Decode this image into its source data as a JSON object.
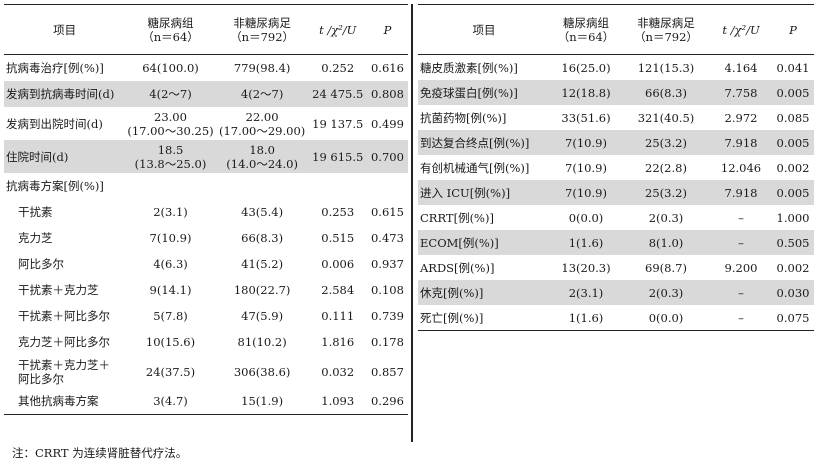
{
  "headers": {
    "item": "项目",
    "dm_group": "糖尿病组",
    "dm_n": "（n＝64）",
    "non_dm_group": "非糖尿病足",
    "non_dm_n": "（n＝792）",
    "stat": "t /χ²/U",
    "p": "P"
  },
  "left_rows": [
    {
      "label": "抗病毒治疗[例(%)]",
      "dm": "64(100.0)",
      "non": "779(98.4)",
      "stat": "0.252",
      "p": "0.616",
      "shade": false,
      "indent": false,
      "type": "single"
    },
    {
      "label": "发病到抗病毒时间(d)",
      "dm": "4(2～7)",
      "non": "4(2～7)",
      "stat": "24 475.5",
      "p": "0.808",
      "shade": true,
      "indent": false,
      "type": "single"
    },
    {
      "label": "发病到出院时间(d)",
      "dm": "23.00",
      "dm2": "(17.00～30.25)",
      "non": "22.00",
      "non2": "(17.00～29.00)",
      "stat": "19 137.5",
      "p": "0.499",
      "shade": false,
      "indent": false,
      "type": "double"
    },
    {
      "label": "住院时间(d)",
      "dm": "18.5",
      "dm2": "(13.8～25.0)",
      "non": "18.0",
      "non2": "(14.0～24.0)",
      "stat": "19 615.5",
      "p": "0.700",
      "shade": true,
      "indent": false,
      "type": "double"
    },
    {
      "label": "抗病毒方案[例(%)]",
      "dm": "",
      "non": "",
      "stat": "",
      "p": "",
      "shade": false,
      "indent": false,
      "type": "single"
    },
    {
      "label": "干扰素",
      "dm": "2(3.1)",
      "non": "43(5.4)",
      "stat": "0.253",
      "p": "0.615",
      "shade": false,
      "indent": true,
      "type": "single"
    },
    {
      "label": "克力芝",
      "dm": "7(10.9)",
      "non": "66(8.3)",
      "stat": "0.515",
      "p": "0.473",
      "shade": false,
      "indent": true,
      "type": "single"
    },
    {
      "label": "阿比多尔",
      "dm": "4(6.3)",
      "non": "41(5.2)",
      "stat": "0.006",
      "p": "0.937",
      "shade": false,
      "indent": true,
      "type": "single"
    },
    {
      "label": "干扰素＋克力芝",
      "dm": "9(14.1)",
      "non": "180(22.7)",
      "stat": "2.584",
      "p": "0.108",
      "shade": false,
      "indent": true,
      "type": "single"
    },
    {
      "label": "干扰素＋阿比多尔",
      "dm": "5(7.8)",
      "non": "47(5.9)",
      "stat": "0.111",
      "p": "0.739",
      "shade": false,
      "indent": true,
      "type": "single"
    },
    {
      "label": "克力芝＋阿比多尔",
      "dm": "10(15.6)",
      "non": "81(10.2)",
      "stat": "1.816",
      "p": "0.178",
      "shade": false,
      "indent": true,
      "type": "single"
    },
    {
      "label": "干扰素＋克力芝＋",
      "label2": "阿比多尔",
      "dm": "24(37.5)",
      "non": "306(38.6)",
      "stat": "0.032",
      "p": "0.857",
      "shade": false,
      "indent": true,
      "type": "double"
    },
    {
      "label": "其他抗病毒方案",
      "dm": "3(4.7)",
      "non": "15(1.9)",
      "stat": "1.093",
      "p": "0.296",
      "shade": false,
      "indent": true,
      "type": "single"
    }
  ],
  "right_rows": [
    {
      "label": "糖皮质激素[例(%)]",
      "dm": "16(25.0)",
      "non": "121(15.3)",
      "stat": "4.164",
      "p": "0.041",
      "shade": false
    },
    {
      "label": "免疫球蛋白[例(%)]",
      "dm": "12(18.8)",
      "non": "66(8.3)",
      "stat": "7.758",
      "p": "0.005",
      "shade": true
    },
    {
      "label": "抗菌药物[例(%)]",
      "dm": "33(51.6)",
      "non": "321(40.5)",
      "stat": "2.972",
      "p": "0.085",
      "shade": false
    },
    {
      "label": "到达复合终点[例(%)]",
      "dm": "7(10.9)",
      "non": "25(3.2)",
      "stat": "7.918",
      "p": "0.005",
      "shade": true
    },
    {
      "label": "有创机械通气[例(%)]",
      "dm": "7(10.9)",
      "non": "22(2.8)",
      "stat": "12.046",
      "p": "0.002",
      "shade": false
    },
    {
      "label": "进入 ICU[例(%)]",
      "dm": "7(10.9)",
      "non": "25(3.2)",
      "stat": "7.918",
      "p": "0.005",
      "shade": true
    },
    {
      "label": "CRRT[例(%)]",
      "dm": "0(0.0)",
      "non": "2(0.3)",
      "stat": "–",
      "p": "1.000",
      "shade": false
    },
    {
      "label": "ECOM[例(%)]",
      "dm": "1(1.6)",
      "non": "8(1.0)",
      "stat": "–",
      "p": "0.505",
      "shade": true
    },
    {
      "label": "ARDS[例(%)]",
      "dm": "13(20.3)",
      "non": "69(8.7)",
      "stat": "9.200",
      "p": "0.002",
      "shade": false
    },
    {
      "label": "休克[例(%)]",
      "dm": "2(3.1)",
      "non": "2(0.3)",
      "stat": "–",
      "p": "0.030",
      "shade": true
    },
    {
      "label": "死亡[例(%)]",
      "dm": "1(1.6)",
      "non": "0(0.0)",
      "stat": "–",
      "p": "0.075",
      "shade": false
    }
  ],
  "note": "注：CRRT 为连续肾脏替代疗法。"
}
